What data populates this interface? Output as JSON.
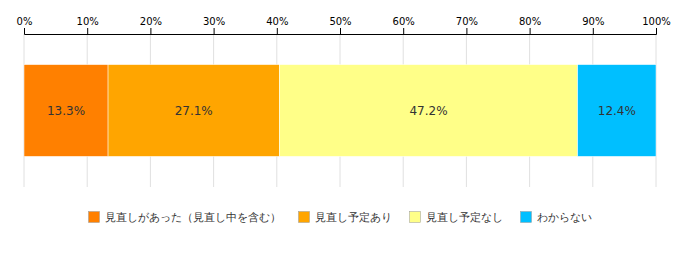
{
  "chart_data": {
    "type": "bar",
    "orientation": "horizontal",
    "stacked": true,
    "categories": [
      null
    ],
    "series": [
      {
        "name": "見直しがあった（見直し中を含む）",
        "color": "#FF8000",
        "values": [
          13.3
        ],
        "value_labels": [
          "13.3%"
        ]
      },
      {
        "name": "見直し予定あり",
        "color": "#FFA500",
        "values": [
          27.1
        ],
        "value_labels": [
          "27.1%"
        ]
      },
      {
        "name": "見直し予定なし",
        "color": "#FFFF88",
        "values": [
          47.2
        ],
        "value_labels": [
          "47.2%"
        ]
      },
      {
        "name": "わからない",
        "color": "#00BFFF",
        "values": [
          12.4
        ],
        "value_labels": [
          "12.4%"
        ]
      }
    ],
    "xlim": [
      0,
      100
    ],
    "xticks": [
      {
        "value": 0,
        "label": "0%"
      },
      {
        "value": 10,
        "label": "10%"
      },
      {
        "value": 20,
        "label": "20%"
      },
      {
        "value": 30,
        "label": "30%"
      },
      {
        "value": 40,
        "label": "40%"
      },
      {
        "value": 50,
        "label": "50%"
      },
      {
        "value": 60,
        "label": "60%"
      },
      {
        "value": 70,
        "label": "70%"
      },
      {
        "value": 80,
        "label": "80%"
      },
      {
        "value": 90,
        "label": "90%"
      },
      {
        "value": 100,
        "label": "100%"
      }
    ],
    "grid": true,
    "data_labels": true,
    "legend": "bottom",
    "tick_labels": "x"
  }
}
